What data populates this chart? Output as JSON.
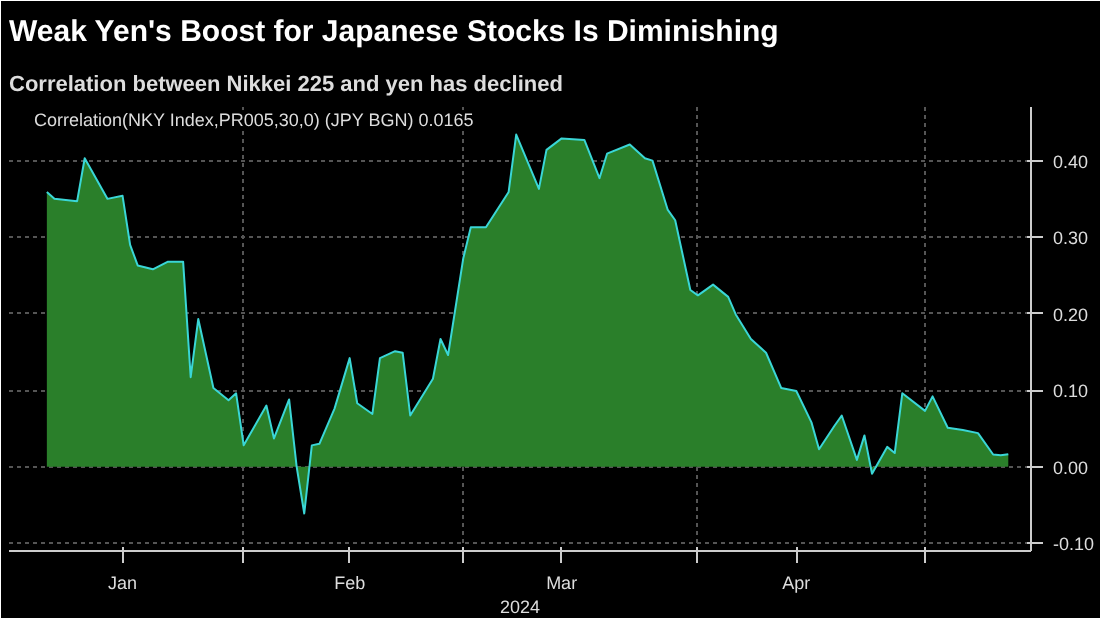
{
  "chart_data": {
    "type": "area",
    "title": "Weak Yen's Boost for Japanese Stocks Is Diminishing",
    "subtitle": "Correlation between Nikkei 225 and yen has declined",
    "xlabel": "2024",
    "x": [
      "2024-01-06",
      "2024-01-07",
      "2024-01-10",
      "2024-01-11",
      "2024-01-14",
      "2024-01-16",
      "2024-01-17",
      "2024-01-18",
      "2024-01-20",
      "2024-01-22",
      "2024-01-24",
      "2024-01-25",
      "2024-01-26",
      "2024-01-28",
      "2024-01-30",
      "2024-01-31",
      "2024-02-01",
      "2024-02-04",
      "2024-02-05",
      "2024-02-07",
      "2024-02-08",
      "2024-02-09",
      "2024-02-10",
      "2024-02-11",
      "2024-02-13",
      "2024-02-15",
      "2024-02-16",
      "2024-02-18",
      "2024-02-19",
      "2024-02-21",
      "2024-02-22",
      "2024-02-23",
      "2024-02-26",
      "2024-02-27",
      "2024-02-28",
      "2024-03-01",
      "2024-03-02",
      "2024-03-04",
      "2024-03-07",
      "2024-03-08",
      "2024-03-11",
      "2024-03-12",
      "2024-03-14",
      "2024-03-17",
      "2024-03-19",
      "2024-03-20",
      "2024-03-23",
      "2024-03-25",
      "2024-03-26",
      "2024-03-28",
      "2024-03-29",
      "2024-03-31",
      "2024-04-01",
      "2024-04-03",
      "2024-04-05",
      "2024-04-06",
      "2024-04-08",
      "2024-04-10",
      "2024-04-12",
      "2024-04-14",
      "2024-04-16",
      "2024-04-17",
      "2024-04-19",
      "2024-04-20",
      "2024-04-22",
      "2024-04-23",
      "2024-04-24",
      "2024-04-26",
      "2024-04-27",
      "2024-04-28",
      "2024-05-01",
      "2024-05-02",
      "2024-05-04",
      "2024-05-06",
      "2024-05-08",
      "2024-05-10",
      "2024-05-11",
      "2024-05-12"
    ],
    "series": [
      {
        "name": "Correlation(NKY Index,PR005,30,0) (JPY BGN) 0.0165",
        "color": "#3ad6d6",
        "values": [
          0.359,
          0.35,
          0.347,
          0.403,
          0.35,
          0.354,
          0.29,
          0.263,
          0.258,
          0.268,
          0.268,
          0.117,
          0.193,
          0.103,
          0.087,
          0.096,
          0.028,
          0.08,
          0.037,
          0.088,
          0.0,
          -0.061,
          0.028,
          0.03,
          0.076,
          0.142,
          0.083,
          0.069,
          0.142,
          0.151,
          0.149,
          0.067,
          0.115,
          0.167,
          0.146,
          0.272,
          0.313,
          0.313,
          0.359,
          0.434,
          0.363,
          0.414,
          0.429,
          0.427,
          0.377,
          0.409,
          0.421,
          0.403,
          0.4,
          0.336,
          0.322,
          0.231,
          0.224,
          0.238,
          0.222,
          0.199,
          0.167,
          0.149,
          0.103,
          0.099,
          0.058,
          0.023,
          0.053,
          0.067,
          0.009,
          0.041,
          -0.009,
          0.026,
          0.018,
          0.096,
          0.073,
          0.092,
          0.051,
          0.048,
          0.044,
          0.016,
          0.015,
          0.0165
        ]
      }
    ],
    "xlim": [
      "2024-01-01",
      "2024-05-15"
    ],
    "xticks": [
      {
        "value": "2024-01-16",
        "label": "Jan"
      },
      {
        "value": "2024-02-01",
        "label": null
      },
      {
        "value": "2024-02-15",
        "label": "Feb"
      },
      {
        "value": "2024-03-01",
        "label": null
      },
      {
        "value": "2024-03-14",
        "label": "Mar"
      },
      {
        "value": "2024-04-01",
        "label": null
      },
      {
        "value": "2024-04-14",
        "label": "Apr"
      },
      {
        "value": "2024-05-01",
        "label": null
      }
    ],
    "ylim": [
      -0.11,
      0.47
    ],
    "yticks": [
      {
        "value": -0.1,
        "label": "-0.10"
      },
      {
        "value": 0.0,
        "label": "0.00"
      },
      {
        "value": 0.1,
        "label": "0.10"
      },
      {
        "value": 0.2,
        "label": "0.20"
      },
      {
        "value": 0.3,
        "label": "0.30"
      },
      {
        "value": 0.4,
        "label": "0.40"
      }
    ],
    "grid": true,
    "legend": "top left"
  }
}
